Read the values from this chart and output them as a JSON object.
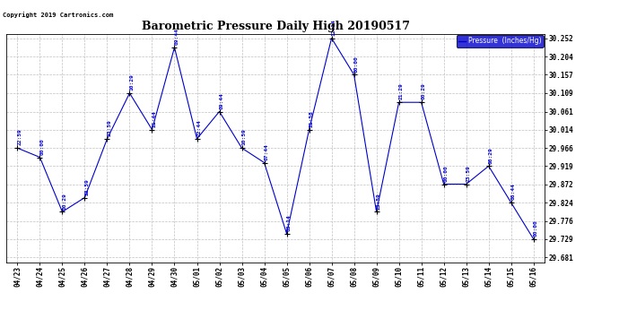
{
  "title": "Barometric Pressure Daily High 20190517",
  "copyright": "Copyright 2019 Cartronics.com",
  "legend_label": "Pressure  (Inches/Hg)",
  "x_labels": [
    "04/23",
    "04/24",
    "04/25",
    "04/26",
    "04/27",
    "04/28",
    "04/29",
    "04/30",
    "05/01",
    "05/02",
    "05/03",
    "05/04",
    "05/05",
    "05/06",
    "05/07",
    "05/08",
    "05/09",
    "05/10",
    "05/11",
    "05/12",
    "05/13",
    "05/14",
    "05/15",
    "05/16"
  ],
  "y_values": [
    29.966,
    29.942,
    29.8,
    29.837,
    29.99,
    30.109,
    30.014,
    30.228,
    29.99,
    30.061,
    29.966,
    29.928,
    29.743,
    30.014,
    30.252,
    30.157,
    29.8,
    30.085,
    30.085,
    29.872,
    29.872,
    29.919,
    29.824,
    29.729
  ],
  "time_labels": [
    "22:59",
    "00:00",
    "00:29",
    "23:59",
    "23:59",
    "10:29",
    "21:44",
    "09:44",
    "22:44",
    "09:44",
    "10:59",
    "07:44",
    "03:14",
    "21:58",
    "12:14",
    "00:00",
    "23:59",
    "21:29",
    "00:29",
    "00:00",
    "23:59",
    "08:29",
    "06:44",
    "00:00"
  ],
  "line_color": "#0000CC",
  "marker_color": "#000000",
  "background_color": "#ffffff",
  "grid_color": "#c0c0c0",
  "y_ticks": [
    29.681,
    29.729,
    29.776,
    29.824,
    29.872,
    29.919,
    29.966,
    30.014,
    30.061,
    30.109,
    30.157,
    30.204,
    30.252
  ],
  "y_min": 29.681,
  "y_max": 30.252
}
